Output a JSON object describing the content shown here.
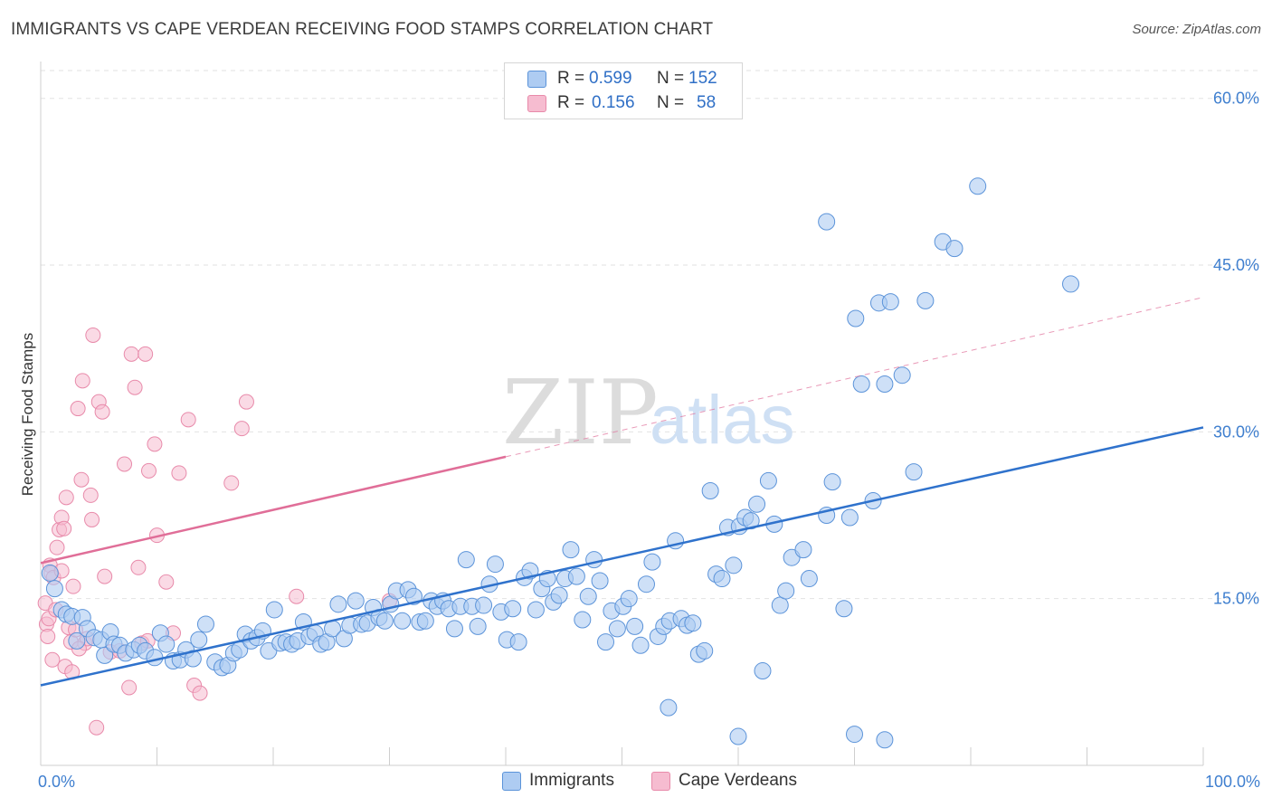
{
  "title": "IMMIGRANTS VS CAPE VERDEAN RECEIVING FOOD STAMPS CORRELATION CHART",
  "source": "Source: ZipAtlas.com",
  "watermark": {
    "zip": "ZIP",
    "atlas": "atlas"
  },
  "colors": {
    "immigrants_fill": "#aeccf2",
    "immigrants_stroke": "#5b93d9",
    "immigrants_line": "#2f72cc",
    "cape_fill": "#f6bcd0",
    "cape_stroke": "#e88aaa",
    "cape_line": "#e06e98",
    "axis_text": "#3f7fcf",
    "grid": "#e2e2e2"
  },
  "legend": {
    "rows": [
      {
        "r_label": "R =",
        "r_value": "0.599",
        "n_label": "N =",
        "n_value": "152"
      },
      {
        "r_label": "R =",
        "r_value": "0.156",
        "n_label": "N =",
        "n_value": "58"
      }
    ]
  },
  "bottom_legend": {
    "immigrants": "Immigrants",
    "cape": "Cape Verdeans"
  },
  "chart_data": {
    "type": "scatter",
    "title": "IMMIGRANTS VS CAPE VERDEAN RECEIVING FOOD STAMPS CORRELATION CHART",
    "xlabel": "",
    "ylabel": "Receiving Food Stamps",
    "xlim": [
      0,
      100
    ],
    "ylim": [
      0,
      62.5
    ],
    "x_tick_labels": [
      "0.0%",
      "100.0%"
    ],
    "y_ticks": [
      15,
      30,
      45,
      60
    ],
    "y_tick_labels": [
      "15.0%",
      "30.0%",
      "45.0%",
      "60.0%"
    ],
    "grid": true,
    "legend_position": "top-center",
    "series": [
      {
        "name": "Immigrants",
        "R": 0.599,
        "N": 152,
        "trend": {
          "x0": 0,
          "y0": 7.2,
          "x1": 100,
          "y1": 30.4,
          "dashed_from": null
        },
        "points": [
          [
            0.8,
            17.3
          ],
          [
            1.2,
            15.9
          ],
          [
            1.8,
            14.0
          ],
          [
            2.2,
            13.6
          ],
          [
            2.7,
            13.4
          ],
          [
            3.1,
            11.2
          ],
          [
            3.6,
            13.3
          ],
          [
            4.0,
            12.3
          ],
          [
            4.6,
            11.5
          ],
          [
            5.2,
            11.3
          ],
          [
            5.5,
            9.9
          ],
          [
            6.0,
            12.0
          ],
          [
            6.3,
            10.9
          ],
          [
            6.8,
            10.8
          ],
          [
            7.3,
            10.1
          ],
          [
            8.0,
            10.4
          ],
          [
            8.5,
            10.8
          ],
          [
            9.0,
            10.3
          ],
          [
            9.8,
            9.7
          ],
          [
            10.3,
            11.9
          ],
          [
            10.8,
            10.9
          ],
          [
            11.4,
            9.4
          ],
          [
            12.0,
            9.5
          ],
          [
            12.5,
            10.4
          ],
          [
            13.1,
            9.6
          ],
          [
            13.6,
            11.3
          ],
          [
            14.2,
            12.7
          ],
          [
            15.0,
            9.3
          ],
          [
            15.6,
            8.8
          ],
          [
            16.1,
            9.0
          ],
          [
            16.6,
            10.1
          ],
          [
            17.1,
            10.4
          ],
          [
            17.6,
            11.8
          ],
          [
            18.1,
            11.2
          ],
          [
            18.6,
            11.5
          ],
          [
            19.1,
            12.1
          ],
          [
            19.6,
            10.3
          ],
          [
            20.1,
            14.0
          ],
          [
            20.6,
            11.0
          ],
          [
            21.1,
            11.1
          ],
          [
            21.6,
            10.9
          ],
          [
            22.1,
            11.2
          ],
          [
            22.6,
            12.9
          ],
          [
            23.1,
            11.6
          ],
          [
            23.6,
            11.9
          ],
          [
            24.1,
            10.9
          ],
          [
            24.6,
            11.1
          ],
          [
            25.1,
            12.3
          ],
          [
            25.6,
            14.5
          ],
          [
            26.1,
            11.4
          ],
          [
            26.6,
            12.6
          ],
          [
            27.1,
            14.8
          ],
          [
            27.6,
            12.7
          ],
          [
            28.1,
            12.8
          ],
          [
            28.6,
            14.2
          ],
          [
            29.1,
            13.3
          ],
          [
            29.6,
            13.0
          ],
          [
            30.1,
            14.5
          ],
          [
            30.6,
            15.7
          ],
          [
            31.1,
            13.0
          ],
          [
            31.6,
            15.8
          ],
          [
            32.1,
            15.2
          ],
          [
            32.6,
            12.9
          ],
          [
            33.1,
            13.0
          ],
          [
            33.6,
            14.8
          ],
          [
            34.1,
            14.3
          ],
          [
            34.6,
            14.8
          ],
          [
            35.1,
            14.1
          ],
          [
            35.6,
            12.3
          ],
          [
            36.1,
            14.3
          ],
          [
            36.6,
            18.5
          ],
          [
            37.1,
            14.3
          ],
          [
            37.6,
            12.5
          ],
          [
            38.1,
            14.4
          ],
          [
            38.6,
            16.3
          ],
          [
            39.1,
            18.1
          ],
          [
            39.6,
            13.8
          ],
          [
            40.1,
            11.3
          ],
          [
            40.6,
            14.1
          ],
          [
            41.1,
            11.1
          ],
          [
            41.6,
            16.9
          ],
          [
            42.1,
            17.5
          ],
          [
            42.6,
            14.0
          ],
          [
            43.1,
            15.9
          ],
          [
            43.6,
            16.8
          ],
          [
            44.1,
            14.7
          ],
          [
            44.6,
            15.3
          ],
          [
            45.1,
            16.8
          ],
          [
            45.6,
            19.4
          ],
          [
            46.1,
            17.0
          ],
          [
            46.6,
            13.1
          ],
          [
            47.1,
            15.2
          ],
          [
            47.6,
            18.5
          ],
          [
            48.1,
            16.6
          ],
          [
            48.6,
            11.1
          ],
          [
            49.1,
            13.9
          ],
          [
            49.6,
            12.3
          ],
          [
            50.1,
            14.3
          ],
          [
            50.6,
            15.0
          ],
          [
            51.1,
            12.5
          ],
          [
            51.6,
            10.8
          ],
          [
            52.1,
            16.3
          ],
          [
            52.6,
            18.3
          ],
          [
            53.1,
            11.6
          ],
          [
            53.6,
            12.5
          ],
          [
            54.1,
            13.0
          ],
          [
            54.6,
            20.2
          ],
          [
            55.1,
            13.2
          ],
          [
            55.6,
            12.6
          ],
          [
            56.1,
            12.8
          ],
          [
            56.6,
            10.0
          ],
          [
            57.1,
            10.3
          ],
          [
            57.6,
            24.7
          ],
          [
            58.1,
            17.2
          ],
          [
            58.6,
            16.8
          ],
          [
            59.1,
            21.4
          ],
          [
            59.6,
            18.0
          ],
          [
            60.1,
            21.5
          ],
          [
            60.6,
            22.3
          ],
          [
            61.1,
            22.0
          ],
          [
            61.6,
            23.5
          ],
          [
            62.1,
            8.5
          ],
          [
            62.6,
            25.6
          ],
          [
            63.1,
            21.7
          ],
          [
            63.6,
            14.4
          ],
          [
            64.1,
            15.7
          ],
          [
            64.6,
            18.7
          ],
          [
            65.6,
            19.4
          ],
          [
            66.1,
            16.8
          ],
          [
            67.6,
            22.5
          ],
          [
            68.1,
            25.5
          ],
          [
            69.1,
            14.1
          ],
          [
            69.6,
            22.3
          ],
          [
            70.1,
            40.2
          ],
          [
            70.6,
            34.3
          ],
          [
            71.6,
            23.8
          ],
          [
            72.1,
            41.6
          ],
          [
            72.6,
            34.3
          ],
          [
            73.1,
            41.7
          ],
          [
            74.1,
            35.1
          ],
          [
            75.1,
            26.4
          ],
          [
            76.1,
            41.8
          ],
          [
            77.6,
            47.1
          ],
          [
            78.6,
            46.5
          ],
          [
            80.6,
            52.1
          ],
          [
            67.6,
            48.9
          ],
          [
            88.6,
            43.3
          ],
          [
            60.0,
            2.6
          ],
          [
            70.0,
            2.8
          ],
          [
            72.6,
            2.3
          ],
          [
            54.0,
            5.2
          ]
        ]
      },
      {
        "name": "Cape Verdeans",
        "R": 0.156,
        "N": 58,
        "trend": {
          "x0": 0,
          "y0": 18.2,
          "x1": 100,
          "y1": 42.1,
          "dashed_from": 40
        },
        "points": [
          [
            0.4,
            14.6
          ],
          [
            0.5,
            12.7
          ],
          [
            0.6,
            11.6
          ],
          [
            0.7,
            13.2
          ],
          [
            0.8,
            18.0
          ],
          [
            0.9,
            17.3
          ],
          [
            1.0,
            9.5
          ],
          [
            1.1,
            16.9
          ],
          [
            1.3,
            14.0
          ],
          [
            1.4,
            19.6
          ],
          [
            1.6,
            21.2
          ],
          [
            1.8,
            22.3
          ],
          [
            2.0,
            21.3
          ],
          [
            2.1,
            8.9
          ],
          [
            2.2,
            24.1
          ],
          [
            2.4,
            12.4
          ],
          [
            2.6,
            11.1
          ],
          [
            2.7,
            8.4
          ],
          [
            2.8,
            16.1
          ],
          [
            3.0,
            12.2
          ],
          [
            3.2,
            32.1
          ],
          [
            3.5,
            25.7
          ],
          [
            3.6,
            34.6
          ],
          [
            3.8,
            11.0
          ],
          [
            4.0,
            11.4
          ],
          [
            4.3,
            24.3
          ],
          [
            4.4,
            22.1
          ],
          [
            4.5,
            38.7
          ],
          [
            4.8,
            3.4
          ],
          [
            5.0,
            32.7
          ],
          [
            5.3,
            31.8
          ],
          [
            5.5,
            17.0
          ],
          [
            6.0,
            10.2
          ],
          [
            6.8,
            10.3
          ],
          [
            7.2,
            27.1
          ],
          [
            7.6,
            7.0
          ],
          [
            7.8,
            37.0
          ],
          [
            8.1,
            34.0
          ],
          [
            8.4,
            17.8
          ],
          [
            8.7,
            11.0
          ],
          [
            9.0,
            37.0
          ],
          [
            9.3,
            26.5
          ],
          [
            9.8,
            28.9
          ],
          [
            10.0,
            20.7
          ],
          [
            10.8,
            16.5
          ],
          [
            11.4,
            11.9
          ],
          [
            11.9,
            26.3
          ],
          [
            12.7,
            31.1
          ],
          [
            13.2,
            7.2
          ],
          [
            13.7,
            6.5
          ],
          [
            16.4,
            25.4
          ],
          [
            17.3,
            30.3
          ],
          [
            17.7,
            32.7
          ],
          [
            22.0,
            15.2
          ],
          [
            30.0,
            14.8
          ],
          [
            9.2,
            11.2
          ],
          [
            1.8,
            17.5
          ],
          [
            3.3,
            10.5
          ]
        ]
      }
    ]
  }
}
